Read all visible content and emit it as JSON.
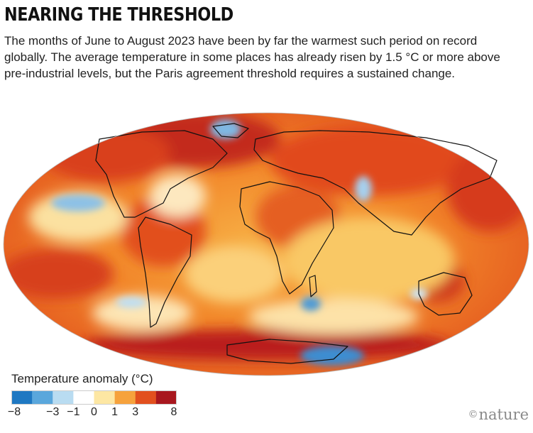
{
  "header": {
    "title": "NEARING THE THRESHOLD",
    "subtitle": "The months of June to August 2023 have been by far the warmest such period on record globally. The average temperature in some places has already risen by 1.5 °C or more above pre-industrial levels, but the Paris agreement threshold requires a sustained change."
  },
  "map": {
    "projection": "Mollweide",
    "variable": "temperature anomaly",
    "period": "June–August 2023"
  },
  "legend": {
    "title": "Temperature anomaly (°C)",
    "ticks": [
      "−8",
      "−3",
      "−1",
      "0",
      "1",
      "3",
      "8"
    ],
    "colors": [
      "#1f78c2",
      "#5aa7dc",
      "#b9dcf1",
      "#ffffff",
      "#fde7a3",
      "#f6a23c",
      "#e2501e",
      "#a8171e"
    ]
  },
  "credit": {
    "symbol": "©",
    "name": "nature"
  }
}
